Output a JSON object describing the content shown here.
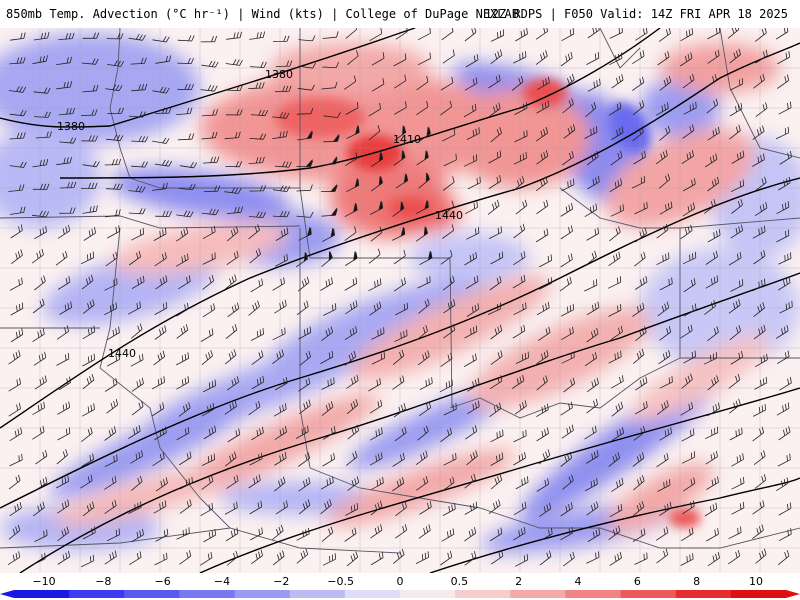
{
  "header": {
    "title": "850mb Temp. Advection (°C hr⁻¹) | Wind (kts) | College of DuPage NEXLAB",
    "valid": "12Z RDPS | F050 Valid: 14Z FRI APR 18 2025"
  },
  "contours": {
    "labels": [
      "1380",
      "1380",
      "1410",
      "1440",
      "1440"
    ]
  },
  "colorbar": {
    "ticks": [
      "−10",
      "−8",
      "−6",
      "−4",
      "−2",
      "−0.5",
      "0",
      "0.5",
      "2",
      "4",
      "6",
      "8",
      "10"
    ],
    "colors": [
      "#1a1ae6",
      "#3c3cf0",
      "#5a5af0",
      "#7878f0",
      "#9a9af2",
      "#bcbcf5",
      "#dedef9",
      "#f6eaea",
      "#f7cccc",
      "#f4aaaa",
      "#f08484",
      "#ec5a5a",
      "#e62e2e",
      "#de1010"
    ]
  },
  "colors": {
    "background": "#fbf1f1",
    "cold": "#8c8cf0",
    "warm": "#f06a6a",
    "contour": "#000000"
  }
}
